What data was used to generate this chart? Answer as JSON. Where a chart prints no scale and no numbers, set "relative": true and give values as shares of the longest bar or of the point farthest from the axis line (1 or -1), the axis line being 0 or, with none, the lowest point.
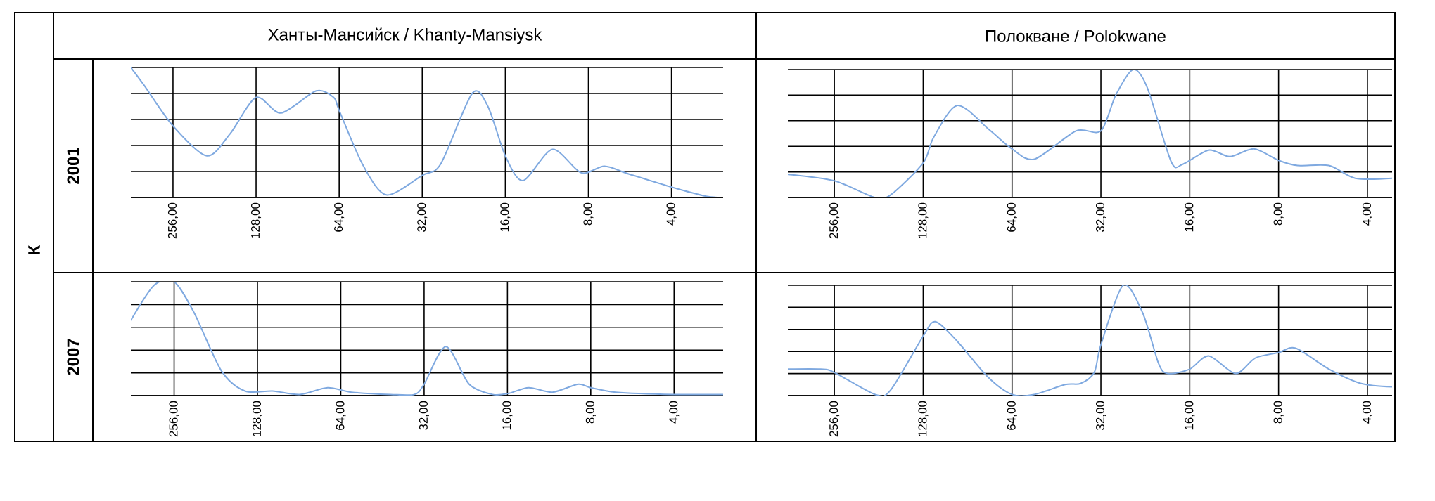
{
  "chart_data": [
    {
      "type": "line",
      "title": "Ханты-Мансийск / Khanty-Mansiysk",
      "ylabel": "2001",
      "annotations": [
        "К"
      ],
      "relative": true,
      "grid": true,
      "tick_labels": "x",
      "marker": "none",
      "line_style": "solid",
      "color": "#7fa9e0",
      "xlim": [
        364,
        2.6
      ],
      "log": "x",
      "xticks": [
        {
          "value": 256,
          "label": "256,00"
        },
        {
          "value": 128,
          "label": "128,00"
        },
        {
          "value": 64,
          "label": "64,00"
        },
        {
          "value": 32,
          "label": "32,00"
        },
        {
          "value": 16,
          "label": "16,00"
        },
        {
          "value": 8,
          "label": "8,00"
        },
        {
          "value": 4,
          "label": "4,00"
        }
      ],
      "x": [
        364,
        325,
        256,
        193,
        159,
        128,
        104,
        77.5,
        67,
        64,
        52.5,
        43.2,
        32,
        27.4,
        21.1,
        18.5,
        16,
        13.8,
        10.8,
        8.5,
        7,
        5.7,
        4,
        3,
        2.6
      ],
      "values": [
        1.0,
        0.86,
        0.55,
        0.32,
        0.49,
        0.77,
        0.65,
        0.82,
        0.77,
        0.67,
        0.25,
        0.02,
        0.17,
        0.26,
        0.8,
        0.7,
        0.32,
        0.13,
        0.37,
        0.19,
        0.24,
        0.18,
        0.08,
        0.01,
        0.0
      ]
    },
    {
      "type": "line",
      "title": "Полокване / Polokwane",
      "relative": true,
      "grid": true,
      "tick_labels": "x",
      "marker": "none",
      "line_style": "solid",
      "color": "#7fa9e0",
      "xlim": [
        368,
        3.3
      ],
      "log": "x",
      "xticks": [
        {
          "value": 256,
          "label": "256,00"
        },
        {
          "value": 128,
          "label": "128,00"
        },
        {
          "value": 64,
          "label": "64,00"
        },
        {
          "value": 32,
          "label": "32,00"
        },
        {
          "value": 16,
          "label": "16,00"
        },
        {
          "value": 8,
          "label": "8,00"
        },
        {
          "value": 4,
          "label": "4,00"
        }
      ],
      "x": [
        368,
        256,
        187,
        165,
        128,
        118,
        98,
        76.5,
        64,
        53.7,
        38.9,
        32,
        28.5,
        24.9,
        22.3,
        18.5,
        16.9,
        13.8,
        11.7,
        9.7,
        8,
        6.9,
        5.4,
        4.4,
        3.3
      ],
      "values": [
        0.18,
        0.13,
        0.0,
        0.02,
        0.27,
        0.47,
        0.72,
        0.53,
        0.38,
        0.3,
        0.52,
        0.52,
        0.8,
        1.0,
        0.86,
        0.28,
        0.26,
        0.37,
        0.32,
        0.38,
        0.29,
        0.25,
        0.25,
        0.15,
        0.15
      ]
    },
    {
      "type": "line",
      "ylabel": "2007",
      "relative": true,
      "grid": true,
      "tick_labels": "x",
      "marker": "none",
      "line_style": "solid",
      "color": "#7fa9e0",
      "xlim": [
        367,
        2.66
      ],
      "log": "x",
      "xticks": [
        {
          "value": 256,
          "label": "256,00"
        },
        {
          "value": 128,
          "label": "128,00"
        },
        {
          "value": 64,
          "label": "64,00"
        },
        {
          "value": 32,
          "label": "32,00"
        },
        {
          "value": 16,
          "label": "16,00"
        },
        {
          "value": 8,
          "label": "8,00"
        },
        {
          "value": 4,
          "label": "4,00"
        }
      ],
      "x": [
        367,
        302,
        256,
        217,
        173,
        142,
        113,
        90,
        71.4,
        58.6,
        42.3,
        34.7,
        32,
        26.7,
        22,
        18.1,
        15.8,
        13.4,
        11,
        8.9,
        8,
        6.5,
        4,
        2.66
      ],
      "values": [
        0.66,
        0.97,
        1.0,
        0.73,
        0.22,
        0.04,
        0.04,
        0.01,
        0.07,
        0.03,
        0.01,
        0.01,
        0.1,
        0.43,
        0.1,
        0.01,
        0.02,
        0.07,
        0.03,
        0.1,
        0.07,
        0.03,
        0.01,
        0.01
      ]
    },
    {
      "type": "line",
      "relative": true,
      "grid": true,
      "tick_labels": "x",
      "marker": "none",
      "line_style": "solid",
      "color": "#7fa9e0",
      "xlim": [
        368,
        3.3
      ],
      "log": "x",
      "xticks": [
        {
          "value": 256,
          "label": "256,00"
        },
        {
          "value": 128,
          "label": "128,00"
        },
        {
          "value": 64,
          "label": "64,00"
        },
        {
          "value": 32,
          "label": "32,00"
        },
        {
          "value": 16,
          "label": "16,00"
        },
        {
          "value": 8,
          "label": "8,00"
        },
        {
          "value": 4,
          "label": "4,00"
        }
      ],
      "x": [
        368,
        285,
        256,
        186.3,
        165,
        128,
        116.5,
        98.7,
        77.4,
        64,
        53.9,
        42.3,
        37.5,
        33.7,
        32,
        26.9,
        23.1,
        20.4,
        19,
        16,
        13.8,
        11.2,
        9.6,
        8,
        7,
        5.4,
        4.2,
        3.3
      ],
      "values": [
        0.24,
        0.24,
        0.21,
        0.01,
        0.05,
        0.54,
        0.67,
        0.5,
        0.17,
        0.01,
        0.01,
        0.1,
        0.11,
        0.21,
        0.46,
        1.0,
        0.75,
        0.29,
        0.2,
        0.24,
        0.36,
        0.2,
        0.34,
        0.39,
        0.43,
        0.24,
        0.11,
        0.08
      ]
    }
  ]
}
